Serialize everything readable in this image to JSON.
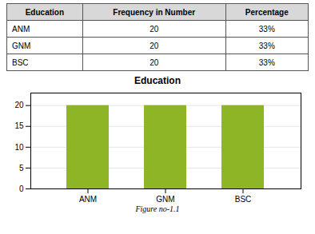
{
  "chart_data": {
    "type": "bar",
    "title": "Education",
    "categories": [
      "ANM",
      "GNM",
      "BSC"
    ],
    "values": [
      20,
      20,
      20
    ],
    "color": "#8db526",
    "ylim": [
      0,
      23
    ],
    "yticks": [
      0,
      5,
      10,
      15,
      20
    ],
    "grid": true,
    "caption": "Figure no-1.1",
    "table": {
      "headers": [
        "Education",
        "Frequency in Number",
        "Percentage"
      ],
      "rows": [
        [
          "ANM",
          "20",
          "33%"
        ],
        [
          "GNM",
          "20",
          "33%"
        ],
        [
          "BSC",
          "20",
          "33%"
        ]
      ]
    }
  }
}
